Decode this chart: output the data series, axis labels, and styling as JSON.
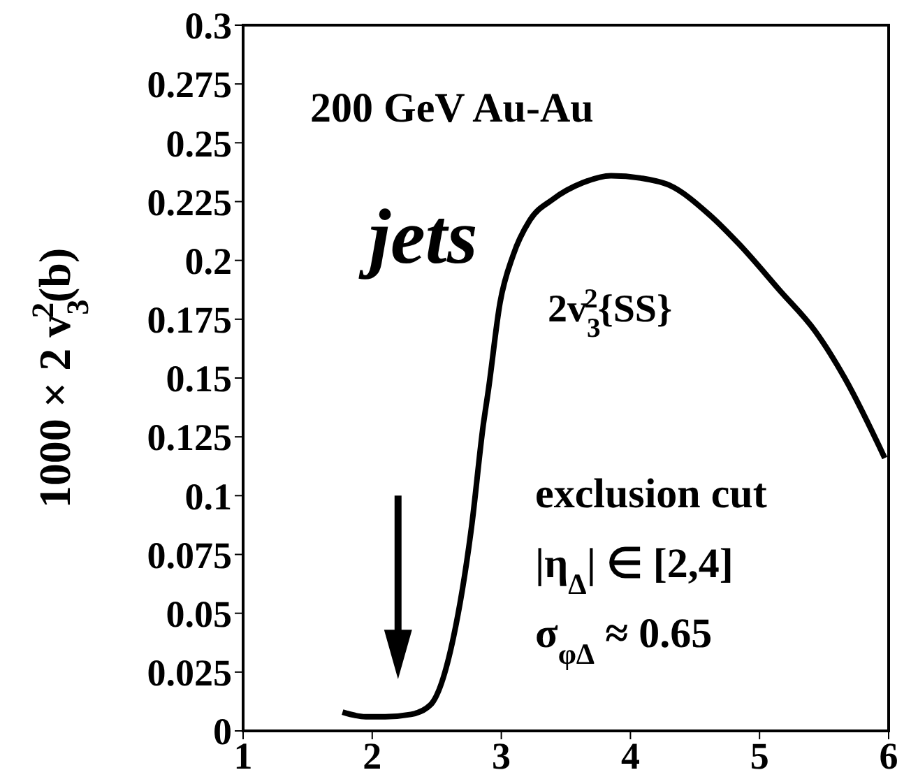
{
  "chart_data": {
    "type": "line",
    "ylabel": "1000 × 2 v$_{3}$$^{2}$(b)",
    "x": [
      1.77,
      1.95,
      2.1,
      2.3,
      2.45,
      2.63,
      2.77,
      2.86,
      2.9,
      2.99,
      3.09,
      3.22,
      3.4,
      3.63,
      3.85,
      4.08,
      4.3,
      4.62,
      4.84,
      5.16,
      5.43,
      5.66,
      5.97
    ],
    "series": [
      {
        "color": "#000000",
        "values": [
          0.008,
          0.006,
          0.006,
          0.007,
          0.011,
          0.04,
          0.087,
          0.13,
          0.145,
          0.182,
          0.202,
          0.217,
          0.226,
          0.233,
          0.236,
          0.235,
          0.232,
          0.219,
          0.207,
          0.187,
          0.17,
          0.15,
          0.116
        ]
      }
    ],
    "xlim": [
      1,
      6
    ],
    "xticks": [
      1,
      2,
      3,
      4,
      5,
      6
    ],
    "ylim": [
      0,
      0.3
    ],
    "yticks": [
      0,
      0.025,
      0.05,
      0.075,
      0.1,
      0.125,
      0.15,
      0.175,
      0.2,
      0.225,
      0.25,
      0.275,
      0.3
    ],
    "annotations": [
      "200 GeV Au-Au",
      "jets",
      "2v$_{3}$$^{2}${SS}",
      "exclusion cut",
      "|η$_{Δ}$| ∈ [2,4]",
      "σ$_{φΔ}$ ≈ 0.65"
    ],
    "marker": "none",
    "line_style": "solid"
  }
}
